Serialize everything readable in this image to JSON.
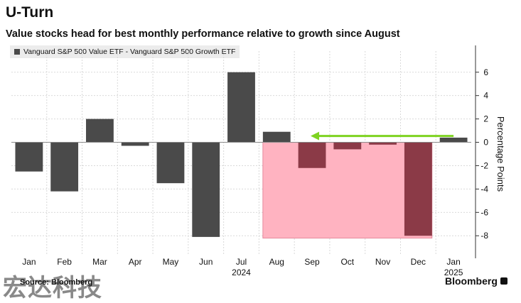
{
  "title": "U-Turn",
  "subtitle": "Value stocks head for best monthly performance relative to growth since August",
  "source": "Source: Bloomberg",
  "watermark": "宏达科技",
  "brand": "Bloomberg",
  "colors": {
    "bar": "#4a4a4a",
    "highlight_bar": "#8b3a47",
    "highlight_region": "#ffb3c1",
    "arrow": "#7ed321"
  },
  "chart_data": {
    "type": "bar",
    "series": [
      {
        "name": "Vanguard S&P 500 Value ETF - Vanguard S&P 500 Growth ETF",
        "values": [
          -2.5,
          -4.2,
          2.0,
          -0.3,
          -3.5,
          -8.1,
          6.0,
          0.9,
          -2.2,
          -0.6,
          -0.2,
          -8.0,
          0.4
        ]
      }
    ],
    "categories": [
      "Jan",
      "Feb",
      "Mar",
      "Apr",
      "May",
      "Jun",
      "Jul",
      "Aug",
      "Sep",
      "Oct",
      "Nov",
      "Dec",
      "Jan"
    ],
    "year_labels": [
      {
        "label": "2024",
        "category_index": 6
      },
      {
        "label": "2025",
        "category_index": 12
      }
    ],
    "ylabel": "Percentage Points",
    "ylim": [
      -9.2,
      7.2
    ],
    "yticks": [
      6,
      4,
      2,
      0,
      -2,
      -4,
      -6,
      -8
    ],
    "ytick_labels": [
      "6",
      "4",
      "2",
      "0",
      "-2",
      "-4",
      "-6",
      "-8"
    ],
    "y_axis_position": "right",
    "grid": true,
    "highlight": {
      "from_index": 7,
      "to_index": 11,
      "bottom_value": -8.2
    },
    "highlight_bar_indices": [
      8,
      9,
      10,
      11
    ],
    "arrow": {
      "from_index": 12,
      "to_index": 8,
      "value": 0.6
    }
  }
}
